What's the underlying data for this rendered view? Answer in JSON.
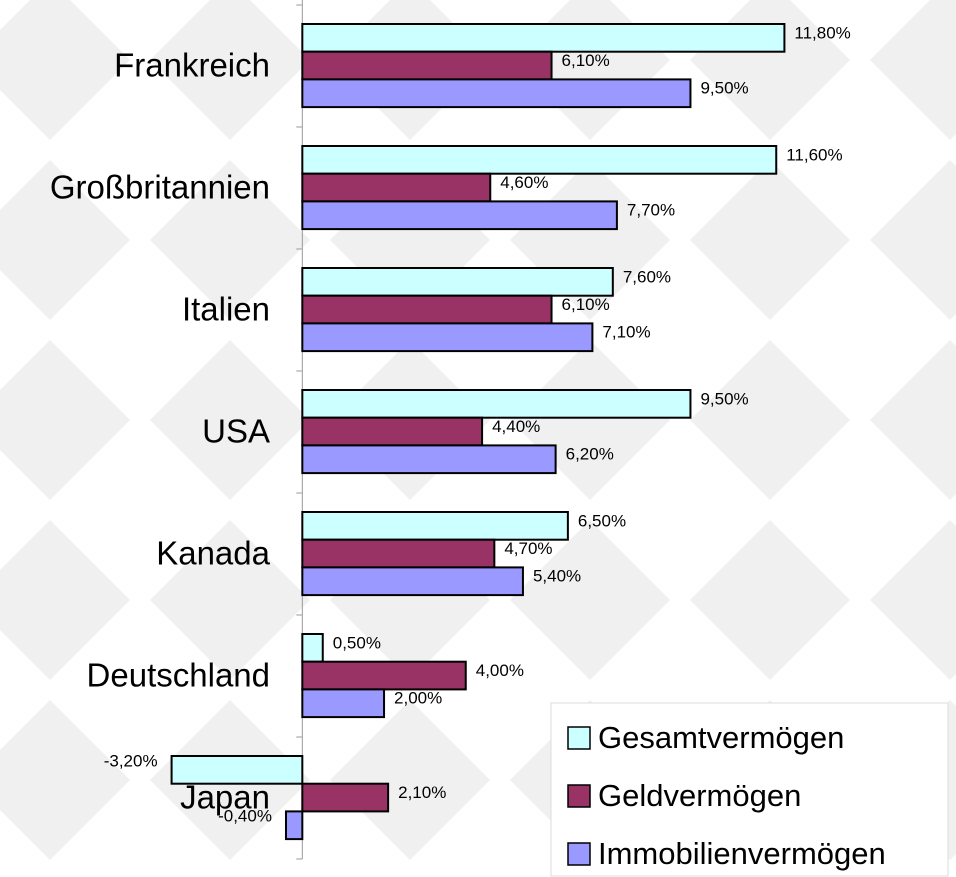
{
  "chart_data": {
    "type": "bar",
    "orientation": "horizontal",
    "categories": [
      "Frankreich",
      "Großbritannien",
      "Italien",
      "USA",
      "Kanada",
      "Deutschland",
      "Japan"
    ],
    "series": [
      {
        "name": "Gesamtvermögen",
        "color": "#ccffff",
        "values": [
          11.8,
          11.6,
          7.6,
          9.5,
          6.5,
          0.5,
          -3.2
        ],
        "value_labels": [
          "11,80%",
          "11,60%",
          "7,60%",
          "9,50%",
          "6,50%",
          "0,50%",
          "-3,20%"
        ]
      },
      {
        "name": "Geldvermögen",
        "color": "#993366",
        "values": [
          6.1,
          4.6,
          6.1,
          4.4,
          4.7,
          4.0,
          2.1
        ],
        "value_labels": [
          "6,10%",
          "4,60%",
          "6,10%",
          "4,40%",
          "4,70%",
          "4,00%",
          "2,10%"
        ]
      },
      {
        "name": "Immobilienvermögen",
        "color": "#9999ff",
        "values": [
          9.5,
          7.7,
          7.1,
          6.2,
          5.4,
          2.0,
          -0.4
        ],
        "value_labels": [
          "9,50%",
          "7,70%",
          "7,10%",
          "6,20%",
          "5,40%",
          "2,00%",
          "-0,40%"
        ]
      }
    ],
    "xlim": [
      -7.4,
      16
    ],
    "legend": "bottom-right"
  }
}
